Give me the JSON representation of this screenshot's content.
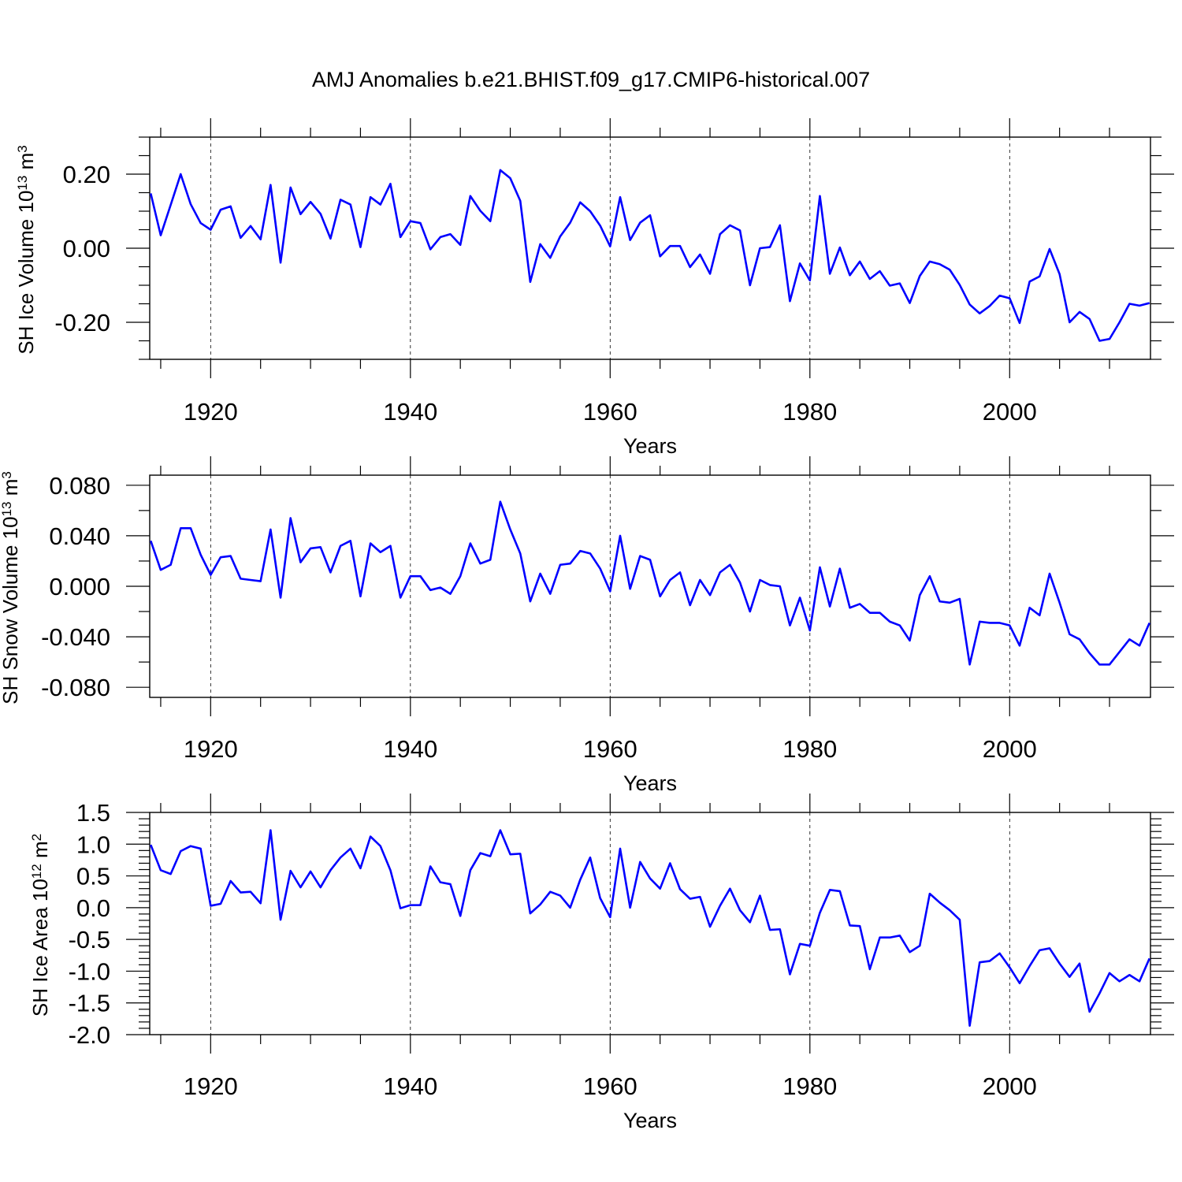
{
  "title": "AMJ Anomalies b.e21.BHIST.f09_g17.CMIP6-historical.007",
  "colors": {
    "line": "#0000ff",
    "axes": "#000000",
    "grid": "#000000",
    "background": "#ffffff"
  },
  "chart_data": [
    {
      "type": "line",
      "ylabel": {
        "prefix": "SH Ice Volume 10",
        "exponent": "13",
        "unit": " m",
        "unit_exponent": "3"
      },
      "xlabel": "Years",
      "xlim": [
        1913.9,
        2014.1
      ],
      "ylim": [
        -0.3,
        0.3
      ],
      "x_ticks": [
        1920,
        1940,
        1960,
        1980,
        2000
      ],
      "x_tick_labels": [
        "1920",
        "1940",
        "1960",
        "1980",
        "2000"
      ],
      "y_ticks": [
        -0.2,
        0.0,
        0.2
      ],
      "y_tick_labels": [
        "-0.20",
        "0.00",
        "0.20"
      ],
      "y_minor_step": 0.05,
      "x_minor_step": 5,
      "vertical_gridlines": [
        1920,
        1940,
        1960,
        1980,
        2000
      ],
      "grid": "dashed vertical at major x ticks",
      "series": [
        {
          "x_start": 1914,
          "values": [
            0.148,
            0.035,
            0.117,
            0.2,
            0.119,
            0.068,
            0.05,
            0.104,
            0.113,
            0.028,
            0.06,
            0.024,
            0.171,
            -0.039,
            0.164,
            0.092,
            0.125,
            0.093,
            0.026,
            0.131,
            0.118,
            0.003,
            0.138,
            0.118,
            0.174,
            0.03,
            0.073,
            0.068,
            -0.003,
            0.03,
            0.038,
            0.009,
            0.141,
            0.101,
            0.073,
            0.211,
            0.189,
            0.128,
            -0.091,
            0.011,
            -0.026,
            0.032,
            0.069,
            0.124,
            0.1,
            0.061,
            0.005,
            0.138,
            0.022,
            0.069,
            0.089,
            -0.022,
            0.006,
            0.006,
            -0.051,
            -0.017,
            -0.069,
            0.038,
            0.062,
            0.048,
            -0.1,
            0.0,
            0.003,
            0.062,
            -0.143,
            -0.041,
            -0.087,
            0.141,
            -0.069,
            0.002,
            -0.073,
            -0.036,
            -0.083,
            -0.062,
            -0.101,
            -0.095,
            -0.148,
            -0.075,
            -0.036,
            -0.043,
            -0.058,
            -0.099,
            -0.152,
            -0.176,
            -0.156,
            -0.128,
            -0.135,
            -0.202,
            -0.09,
            -0.076,
            -0.002,
            -0.07,
            -0.2,
            -0.172,
            -0.191,
            -0.25,
            -0.245,
            -0.2,
            -0.15,
            -0.155,
            -0.148
          ]
        }
      ]
    },
    {
      "type": "line",
      "ylabel": {
        "prefix": "SH Snow Volume 10",
        "exponent": "13",
        "unit": " m",
        "unit_exponent": "3"
      },
      "xlabel": "Years",
      "xlim": [
        1913.9,
        2014.1
      ],
      "ylim": [
        -0.088,
        0.088
      ],
      "x_ticks": [
        1920,
        1940,
        1960,
        1980,
        2000
      ],
      "x_tick_labels": [
        "1920",
        "1940",
        "1960",
        "1980",
        "2000"
      ],
      "y_ticks": [
        -0.08,
        -0.04,
        0.0,
        0.04,
        0.08
      ],
      "y_tick_labels": [
        "-0.080",
        "-0.040",
        "0.000",
        "0.040",
        "0.080"
      ],
      "y_minor_step": 0.02,
      "x_minor_step": 5,
      "vertical_gridlines": [
        1920,
        1940,
        1960,
        1980,
        2000
      ],
      "grid": "dashed vertical at major x ticks",
      "series": [
        {
          "x_start": 1914,
          "values": [
            0.036,
            0.013,
            0.017,
            0.046,
            0.046,
            0.025,
            0.009,
            0.023,
            0.024,
            0.006,
            0.005,
            0.004,
            0.045,
            -0.009,
            0.054,
            0.019,
            0.03,
            0.031,
            0.011,
            0.032,
            0.036,
            -0.008,
            0.034,
            0.027,
            0.032,
            -0.009,
            0.008,
            0.008,
            -0.003,
            -0.001,
            -0.006,
            0.008,
            0.034,
            0.018,
            0.021,
            0.067,
            0.045,
            0.026,
            -0.012,
            0.01,
            -0.006,
            0.017,
            0.018,
            0.028,
            0.026,
            0.014,
            -0.004,
            0.04,
            -0.002,
            0.024,
            0.021,
            -0.008,
            0.005,
            0.011,
            -0.015,
            0.005,
            -0.007,
            0.011,
            0.017,
            0.003,
            -0.02,
            0.005,
            0.001,
            0.0,
            -0.031,
            -0.009,
            -0.035,
            0.015,
            -0.016,
            0.014,
            -0.017,
            -0.014,
            -0.021,
            -0.021,
            -0.028,
            -0.031,
            -0.043,
            -0.007,
            0.008,
            -0.012,
            -0.013,
            -0.01,
            -0.062,
            -0.028,
            -0.029,
            -0.029,
            -0.031,
            -0.047,
            -0.017,
            -0.023,
            0.01,
            -0.013,
            -0.038,
            -0.042,
            -0.053,
            -0.062,
            -0.062,
            -0.052,
            -0.042,
            -0.047,
            -0.029
          ]
        }
      ]
    },
    {
      "type": "line",
      "ylabel": {
        "prefix": "SH Ice Area 10",
        "exponent": "12",
        "unit": " m",
        "unit_exponent": "2"
      },
      "xlabel": "Years",
      "xlim": [
        1913.9,
        2014.1
      ],
      "ylim": [
        -2.0,
        1.5
      ],
      "x_ticks": [
        1920,
        1940,
        1960,
        1980,
        2000
      ],
      "x_tick_labels": [
        "1920",
        "1940",
        "1960",
        "1980",
        "2000"
      ],
      "y_ticks": [
        -2.0,
        -1.5,
        -1.0,
        -0.5,
        0.0,
        0.5,
        1.0,
        1.5
      ],
      "y_tick_labels": [
        "-2.0",
        "-1.5",
        "-1.0",
        "-0.5",
        "0.0",
        "0.5",
        "1.0",
        "1.5"
      ],
      "y_minor_step": 0.1,
      "x_minor_step": 5,
      "vertical_gridlines": [
        1920,
        1940,
        1960,
        1980,
        2000
      ],
      "grid": "dashed vertical at major x ticks",
      "series": [
        {
          "x_start": 1914,
          "values": [
            0.99,
            0.59,
            0.53,
            0.89,
            0.97,
            0.93,
            0.03,
            0.06,
            0.42,
            0.24,
            0.25,
            0.07,
            1.22,
            -0.19,
            0.58,
            0.32,
            0.57,
            0.32,
            0.59,
            0.79,
            0.93,
            0.62,
            1.12,
            0.97,
            0.59,
            -0.01,
            0.04,
            0.04,
            0.65,
            0.4,
            0.37,
            -0.13,
            0.59,
            0.86,
            0.81,
            1.22,
            0.84,
            0.85,
            -0.09,
            0.05,
            0.25,
            0.19,
            0.0,
            0.44,
            0.79,
            0.15,
            -0.15,
            0.93,
            0.0,
            0.72,
            0.46,
            0.3,
            0.7,
            0.29,
            0.14,
            0.17,
            -0.3,
            0.03,
            0.3,
            -0.04,
            -0.23,
            0.19,
            -0.35,
            -0.34,
            -1.05,
            -0.57,
            -0.6,
            -0.08,
            0.28,
            0.26,
            -0.28,
            -0.29,
            -0.97,
            -0.47,
            -0.47,
            -0.44,
            -0.7,
            -0.6,
            0.22,
            0.08,
            -0.04,
            -0.19,
            -1.86,
            -0.86,
            -0.84,
            -0.72,
            -0.94,
            -1.19,
            -0.92,
            -0.67,
            -0.64,
            -0.88,
            -1.09,
            -0.88,
            -1.64,
            -1.35,
            -1.03,
            -1.16,
            -1.06,
            -1.16,
            -0.8
          ]
        }
      ]
    }
  ]
}
